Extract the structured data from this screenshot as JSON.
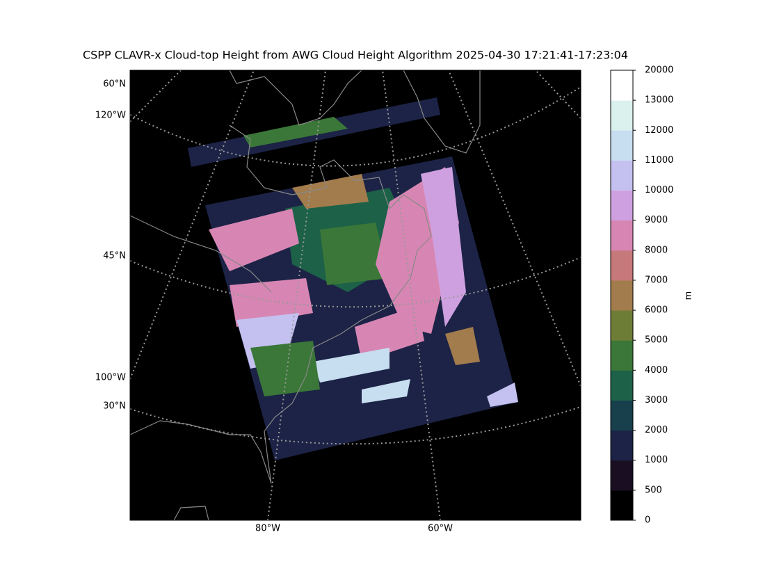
{
  "title": "CSPP CLAVR-x Cloud-top Height from AWG Cloud Height Algorithm 2025-04-30 17:21:41-17:23:04",
  "map": {
    "left_labels": [
      "60°N",
      "120°W",
      "45°N",
      "100°W",
      "30°N"
    ],
    "bottom_labels": [
      "80°W",
      "60°W"
    ]
  },
  "colorbar": {
    "label": "m",
    "boundaries": [
      0,
      500,
      1000,
      2000,
      3000,
      4000,
      5000,
      6000,
      7000,
      8000,
      9000,
      10000,
      11000,
      12000,
      13000,
      20000
    ],
    "colors": [
      "#000000",
      "#1a0f22",
      "#1c2346",
      "#173f4c",
      "#1c6148",
      "#3b7738",
      "#6e7d36",
      "#a27c4c",
      "#c6797a",
      "#d786b3",
      "#cfa0e0",
      "#c4c1f0",
      "#c7def0",
      "#daf1ee",
      "#ffffff"
    ]
  }
}
